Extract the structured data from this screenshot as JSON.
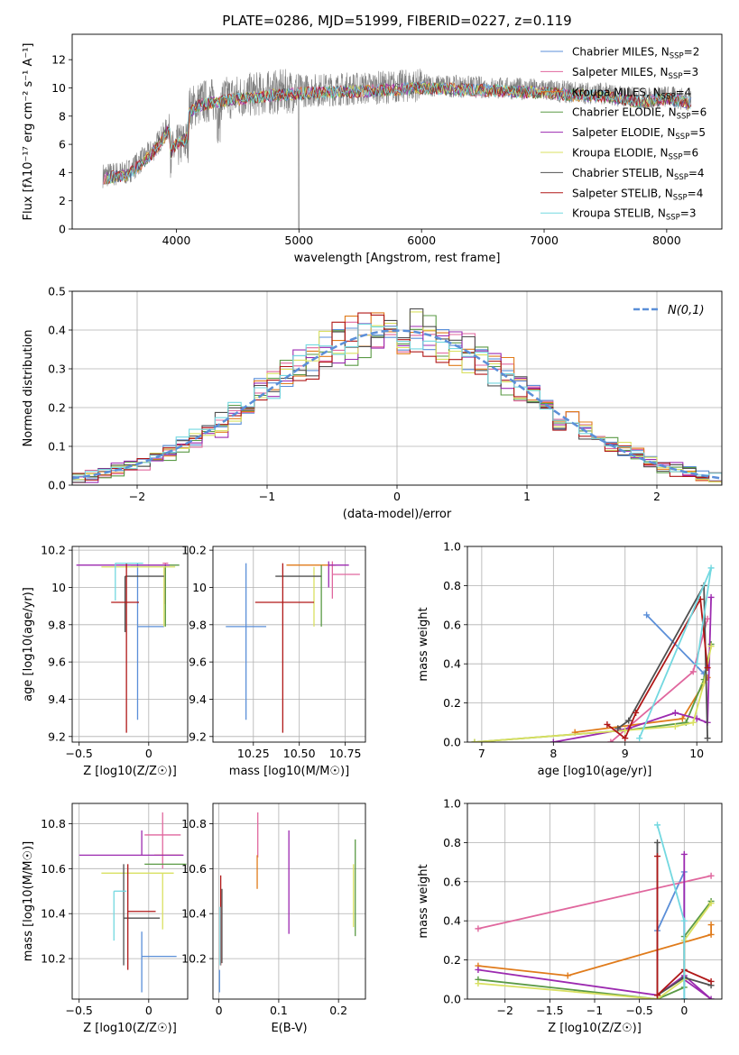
{
  "figure_title": "PLATE=0286, MJD=51999, FIBERID=0227, z=0.119",
  "chart_data": [
    {
      "id": "spectrum",
      "type": "line",
      "xlabel": "wavelength [Angstrom, rest frame]",
      "ylabel": "Flux [fλ10⁻¹⁷ erg cm⁻² s⁻¹ A⁻¹]",
      "xlim": [
        3150,
        8450
      ],
      "ylim": [
        0,
        13.8
      ],
      "xticks": [
        4000,
        5000,
        6000,
        7000,
        8000
      ],
      "yticks": [
        0,
        2,
        4,
        6,
        8,
        10,
        12
      ],
      "legend_position": "top-right",
      "series": [
        {
          "name": "Chabrier MILES, N",
          "sub": "SSP",
          "suffix": "=2",
          "color": "#5b8fd8"
        },
        {
          "name": "Salpeter MILES, N",
          "sub": "SSP",
          "suffix": "=3",
          "color": "#e0679e"
        },
        {
          "name": "Kroupa MILES, N",
          "sub": "SSP",
          "suffix": "=4",
          "color": "#e07b1b"
        },
        {
          "name": "Chabrier ELODIE, N",
          "sub": "SSP",
          "suffix": "=6",
          "color": "#5a9a45"
        },
        {
          "name": "Salpeter ELODIE, N",
          "sub": "SSP",
          "suffix": "=5",
          "color": "#9c2ab0"
        },
        {
          "name": "Kroupa ELODIE, N",
          "sub": "SSP",
          "suffix": "=6",
          "color": "#d9e060"
        },
        {
          "name": "Chabrier STELIB, N",
          "sub": "SSP",
          "suffix": "=4",
          "color": "#505050"
        },
        {
          "name": "Salpeter STELIB, N",
          "sub": "SSP",
          "suffix": "=4",
          "color": "#b01818"
        },
        {
          "name": "Kroupa STELIB, N",
          "sub": "SSP",
          "suffix": "=3",
          "color": "#73d8e0"
        }
      ],
      "data_color": "#808080",
      "continuum_x": [
        3400,
        3600,
        3800,
        4000,
        4200,
        4500,
        4800,
        5000,
        5300,
        5600,
        6000,
        6300,
        6600,
        6900,
        7200,
        7500,
        7800,
        8000,
        8200
      ],
      "continuum_y": [
        3.8,
        4.0,
        5.5,
        8.0,
        9.0,
        9.4,
        9.7,
        9.8,
        9.9,
        10.0,
        10.2,
        10.1,
        10.0,
        9.9,
        9.7,
        9.6,
        9.2,
        9.4,
        9.1
      ]
    },
    {
      "id": "residuals",
      "type": "histogram",
      "xlabel": "(data-model)/error",
      "ylabel": "Normed distribution",
      "xlim": [
        -2.5,
        2.5
      ],
      "ylim": [
        0,
        0.5
      ],
      "xticks": [
        -2,
        -1,
        0,
        1,
        2
      ],
      "yticks": [
        0.0,
        0.1,
        0.2,
        0.3,
        0.4,
        0.5
      ],
      "bin_width": 0.1,
      "reference_curve": {
        "label": "N(0,1)",
        "color": "#5b8fd8"
      },
      "legend_position": "top-right"
    },
    {
      "id": "age-vs-Z",
      "type": "errorbar",
      "xlabel": "Z [log10(Z/Z☉)]",
      "ylabel": "age [log10(age/yr)]",
      "xlim": [
        -0.55,
        0.28
      ],
      "ylim": [
        9.17,
        10.22
      ],
      "xticks": [
        -0.5,
        0.0
      ],
      "yticks": [
        9.2,
        9.4,
        9.6,
        9.8,
        10.0,
        10.2
      ],
      "points": [
        {
          "x": -0.08,
          "y": 9.79,
          "xerr": [
            0.0,
            0.19
          ],
          "yerr": [
            0.5,
            0.34
          ],
          "color": "#5b8fd8"
        },
        {
          "x": 0.12,
          "y": 10.13,
          "xerr": [
            0.02,
            0.02
          ],
          "yerr": [
            0.22,
            0.0
          ],
          "color": "#e0679e"
        },
        {
          "x": 0.12,
          "y": 10.12,
          "xerr": [
            0.2,
            0.07
          ],
          "yerr": [
            0.0,
            0.0
          ],
          "color": "#e07b1b"
        },
        {
          "x": 0.12,
          "y": 10.12,
          "xerr": [
            0.25,
            0.1
          ],
          "yerr": [
            0.33,
            0.0
          ],
          "color": "#5a9a45"
        },
        {
          "x": -0.09,
          "y": 10.12,
          "xerr": [
            0.43,
            0.24
          ],
          "yerr": [
            0.0,
            0.0
          ],
          "color": "#9c2ab0"
        },
        {
          "x": 0.11,
          "y": 10.11,
          "xerr": [
            0.45,
            0.08
          ],
          "yerr": [
            0.32,
            0.0
          ],
          "color": "#d9e060"
        },
        {
          "x": -0.17,
          "y": 10.06,
          "xerr": [
            0.0,
            0.28
          ],
          "yerr": [
            0.3,
            0.0
          ],
          "color": "#505050"
        },
        {
          "x": -0.16,
          "y": 9.92,
          "xerr": [
            0.11,
            0.09
          ],
          "yerr": [
            0.7,
            0.21
          ],
          "color": "#b01818"
        },
        {
          "x": -0.24,
          "y": 10.13,
          "xerr": [
            0.0,
            0.2
          ],
          "yerr": [
            0.2,
            0.0
          ],
          "color": "#73d8e0"
        }
      ]
    },
    {
      "id": "age-vs-mass",
      "type": "errorbar",
      "xlabel": "mass [log10(M/M☉)]",
      "ylabel": "",
      "xlim": [
        10.03,
        10.86
      ],
      "ylim": [
        9.17,
        10.22
      ],
      "xticks": [
        10.25,
        10.5,
        10.75
      ],
      "xticklabels": [
        "10.25",
        "10.50",
        "10.75"
      ],
      "yticks": [
        9.2,
        9.4,
        9.6,
        9.8,
        10.0,
        10.2
      ],
      "points": [
        {
          "x": 10.21,
          "y": 9.79,
          "xerr": [
            0.11,
            0.11
          ],
          "yerr": [
            0.5,
            0.34
          ],
          "color": "#5b8fd8"
        },
        {
          "x": 10.68,
          "y": 10.07,
          "xerr": [
            0.0,
            0.15
          ],
          "yerr": [
            0.13,
            0.07
          ],
          "color": "#e0679e"
        },
        {
          "x": 10.7,
          "y": 10.12,
          "xerr": [
            0.27,
            0.0
          ],
          "yerr": [
            0.0,
            0.0
          ],
          "color": "#e07b1b"
        },
        {
          "x": 10.62,
          "y": 10.12,
          "xerr": [
            0.0,
            0.0
          ],
          "yerr": [
            0.33,
            0.0
          ],
          "color": "#5a9a45"
        },
        {
          "x": 10.66,
          "y": 10.12,
          "xerr": [
            0.0,
            0.11
          ],
          "yerr": [
            0.12,
            0.02
          ],
          "color": "#9c2ab0"
        },
        {
          "x": 10.58,
          "y": 10.11,
          "xerr": [
            0.0,
            0.0
          ],
          "yerr": [
            0.32,
            0.0
          ],
          "color": "#d9e060"
        },
        {
          "x": 10.37,
          "y": 10.06,
          "xerr": [
            0.0,
            0.25
          ],
          "yerr": [
            0.0,
            0.0
          ],
          "color": "#505050"
        },
        {
          "x": 10.41,
          "y": 9.92,
          "xerr": [
            0.15,
            0.17
          ],
          "yerr": [
            0.7,
            0.21
          ],
          "color": "#b01818"
        },
        {
          "x": 10.5,
          "y": 10.13,
          "xerr": [
            0.0,
            0.0
          ],
          "yerr": [
            0.0,
            0.0
          ],
          "color": "#73d8e0"
        }
      ]
    },
    {
      "id": "weight-vs-age",
      "type": "line",
      "xlabel": "age [log10(age/yr)]",
      "ylabel": "mass weight",
      "xlim": [
        6.8,
        10.35
      ],
      "ylim": [
        0,
        1.0
      ],
      "xticks": [
        7,
        8,
        9,
        10
      ],
      "yticks": [
        0.0,
        0.2,
        0.4,
        0.6,
        0.8,
        1.0
      ],
      "series": [
        {
          "color": "#5b8fd8",
          "x": [
            9.3,
            10.1
          ],
          "y": [
            0.65,
            0.35
          ]
        },
        {
          "color": "#e0679e",
          "x": [
            8.8,
            9.95,
            10.15
          ],
          "y": [
            0.0,
            0.36,
            0.63
          ]
        },
        {
          "color": "#e07b1b",
          "x": [
            8.3,
            9.8,
            10.15
          ],
          "y": [
            0.05,
            0.12,
            0.33
          ]
        },
        {
          "color": "#5a9a45",
          "x": [
            6.9,
            9.0,
            9.85,
            10.1,
            10.2
          ],
          "y": [
            0.0,
            0.06,
            0.1,
            0.32,
            0.5
          ]
        },
        {
          "color": "#9c2ab0",
          "x": [
            8.0,
            9.05,
            9.7,
            10.0,
            10.15,
            10.2
          ],
          "y": [
            0.0,
            0.07,
            0.15,
            0.12,
            0.1,
            0.74
          ]
        },
        {
          "color": "#d9e060",
          "x": [
            6.9,
            9.0,
            9.7,
            9.95,
            10.1,
            10.2
          ],
          "y": [
            0.0,
            0.06,
            0.08,
            0.1,
            0.3,
            0.49
          ]
        },
        {
          "color": "#505050",
          "x": [
            8.9,
            9.05,
            10.1,
            10.15
          ],
          "y": [
            0.07,
            0.11,
            0.8,
            0.02
          ]
        },
        {
          "color": "#b01818",
          "x": [
            8.75,
            9.0,
            9.15,
            10.05,
            10.15
          ],
          "y": [
            0.09,
            0.02,
            0.15,
            0.73,
            0.38
          ]
        },
        {
          "color": "#73d8e0",
          "x": [
            9.2,
            10.2,
            10.0
          ],
          "y": [
            0.02,
            0.89,
            0.4
          ]
        }
      ]
    },
    {
      "id": "mass-vs-Z",
      "type": "errorbar",
      "xlabel": "Z [log10(Z/Z☉)]",
      "ylabel": "mass [log10(M/M☉)]",
      "xlim": [
        -0.55,
        0.28
      ],
      "ylim": [
        10.02,
        10.89
      ],
      "xticks": [
        -0.5,
        0.0
      ],
      "yticks": [
        10.2,
        10.4,
        10.6,
        10.8
      ],
      "points": [
        {
          "x": -0.05,
          "y": 10.21,
          "xerr": [
            0.0,
            0.25
          ],
          "yerr": [
            0.16,
            0.11
          ],
          "color": "#5b8fd8"
        },
        {
          "x": 0.1,
          "y": 10.75,
          "xerr": [
            0.13,
            0.13
          ],
          "yerr": [
            0.15,
            0.1
          ],
          "color": "#e0679e"
        },
        {
          "x": 0.14,
          "y": 10.66,
          "xerr": [
            0.1,
            0.1
          ],
          "yerr": [
            0.0,
            0.0
          ],
          "color": "#e07b1b"
        },
        {
          "x": 0.12,
          "y": 10.62,
          "xerr": [
            0.15,
            0.15
          ],
          "yerr": [
            0.0,
            0.0
          ],
          "color": "#5a9a45"
        },
        {
          "x": -0.05,
          "y": 10.66,
          "xerr": [
            0.45,
            0.3
          ],
          "yerr": [
            0.0,
            0.11
          ],
          "color": "#9c2ab0"
        },
        {
          "x": 0.1,
          "y": 10.58,
          "xerr": [
            0.44,
            0.08
          ],
          "yerr": [
            0.25,
            0.0
          ],
          "color": "#d9e060"
        },
        {
          "x": -0.18,
          "y": 10.38,
          "xerr": [
            0.0,
            0.26
          ],
          "yerr": [
            0.21,
            0.24
          ],
          "color": "#505050"
        },
        {
          "x": -0.15,
          "y": 10.41,
          "xerr": [
            0.0,
            0.2
          ],
          "yerr": [
            0.26,
            0.21
          ],
          "color": "#b01818"
        },
        {
          "x": -0.25,
          "y": 10.5,
          "xerr": [
            0.0,
            0.09
          ],
          "yerr": [
            0.22,
            0.0
          ],
          "color": "#73d8e0"
        }
      ]
    },
    {
      "id": "mass-vs-EBV",
      "type": "errorbar",
      "xlabel": "E(B-V)",
      "ylabel": "",
      "xlim": [
        -0.01,
        0.245
      ],
      "ylim": [
        10.02,
        10.89
      ],
      "xticks": [
        0.0,
        0.1,
        0.2
      ],
      "yticks": [
        10.2,
        10.4,
        10.6,
        10.8
      ],
      "points": [
        {
          "x": 0.001,
          "y": 10.1,
          "xerr": [
            0,
            0
          ],
          "yerr": [
            0.05,
            0.05
          ],
          "color": "#5b8fd8"
        },
        {
          "x": 0.065,
          "y": 10.75,
          "xerr": [
            0,
            0
          ],
          "yerr": [
            0.1,
            0.1
          ],
          "color": "#e0679e"
        },
        {
          "x": 0.064,
          "y": 10.58,
          "xerr": [
            0,
            0
          ],
          "yerr": [
            0.07,
            0.08
          ],
          "color": "#e07b1b"
        },
        {
          "x": 0.228,
          "y": 10.5,
          "xerr": [
            0,
            0
          ],
          "yerr": [
            0.2,
            0.23
          ],
          "color": "#5a9a45"
        },
        {
          "x": 0.117,
          "y": 10.54,
          "xerr": [
            0,
            0
          ],
          "yerr": [
            0.23,
            0.23
          ],
          "color": "#9c2ab0"
        },
        {
          "x": 0.225,
          "y": 10.48,
          "xerr": [
            0,
            0
          ],
          "yerr": [
            0.14,
            0.14
          ],
          "color": "#d9e060"
        },
        {
          "x": 0.005,
          "y": 10.38,
          "xerr": [
            0,
            0
          ],
          "yerr": [
            0.2,
            0.13
          ],
          "color": "#505050"
        },
        {
          "x": 0.003,
          "y": 10.37,
          "xerr": [
            0,
            0
          ],
          "yerr": [
            0.2,
            0.2
          ],
          "color": "#b01818"
        },
        {
          "x": 0.002,
          "y": 10.3,
          "xerr": [
            0,
            0
          ],
          "yerr": [
            0.13,
            0.13
          ],
          "color": "#73d8e0"
        }
      ]
    },
    {
      "id": "weight-vs-Z",
      "type": "line",
      "xlabel": "Z [log10(Z/Z☉)]",
      "ylabel": "mass weight",
      "xlim": [
        -2.42,
        0.42
      ],
      "ylim": [
        0,
        1.0
      ],
      "xticks": [
        -2.0,
        -1.5,
        -1.0,
        -0.5,
        0.0
      ],
      "yticks": [
        0.0,
        0.2,
        0.4,
        0.6,
        0.8,
        1.0
      ],
      "series": [
        {
          "color": "#5b8fd8",
          "x": [
            -0.3,
            0.0,
            0.0
          ],
          "y": [
            0.35,
            0.65,
            0.0
          ]
        },
        {
          "color": "#e0679e",
          "x": [
            -2.3,
            0.3
          ],
          "y": [
            0.36,
            0.63
          ]
        },
        {
          "color": "#e07b1b",
          "x": [
            -2.3,
            -1.3,
            0.3,
            0.3
          ],
          "y": [
            0.17,
            0.12,
            0.33,
            0.38
          ]
        },
        {
          "color": "#5a9a45",
          "x": [
            -2.3,
            -0.3,
            0.0,
            0.0,
            0.3
          ],
          "y": [
            0.1,
            0.0,
            0.06,
            0.32,
            0.5
          ]
        },
        {
          "color": "#9c2ab0",
          "x": [
            -2.3,
            -0.3,
            0.0,
            0.3,
            0.0,
            0.0
          ],
          "y": [
            0.15,
            0.02,
            0.12,
            0.0,
            0.1,
            0.74
          ]
        },
        {
          "color": "#d9e060",
          "x": [
            -2.3,
            -0.3,
            0.0,
            0.0,
            0.3
          ],
          "y": [
            0.08,
            0.0,
            0.1,
            0.3,
            0.49
          ]
        },
        {
          "color": "#505050",
          "x": [
            -0.3,
            -0.3,
            0.0,
            0.3
          ],
          "y": [
            0.8,
            0.02,
            0.11,
            0.07
          ]
        },
        {
          "color": "#b01818",
          "x": [
            -0.3,
            -0.3,
            0.0,
            0.3
          ],
          "y": [
            0.73,
            0.02,
            0.15,
            0.09
          ]
        },
        {
          "color": "#73d8e0",
          "x": [
            -0.3,
            0.0,
            0.0
          ],
          "y": [
            0.89,
            0.4,
            0.0
          ]
        }
      ]
    }
  ]
}
